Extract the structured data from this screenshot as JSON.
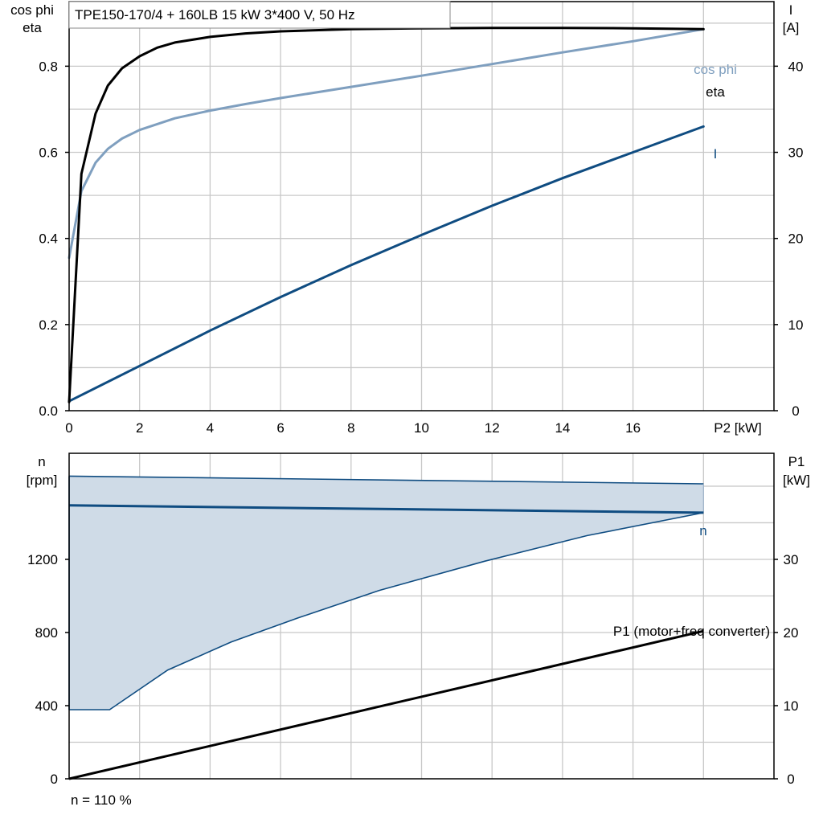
{
  "title": "TPE150-170/4 + 160LB   15 kW   3*400 V, 50 Hz",
  "footnote": "n = 110 %",
  "colors": {
    "eta": "#000000",
    "cosphi": "#7f9fbf",
    "current": "#0f4c81",
    "speed": "#0f4c81",
    "speed_band_fill": "#cfdbe7",
    "p1": "#000000",
    "grid": "#c8c8c8"
  },
  "chart_data": [
    {
      "type": "line",
      "axes": {
        "x": {
          "label": "P2 [kW]",
          "range": [
            0,
            20
          ],
          "ticks": [
            0,
            2,
            4,
            6,
            8,
            10,
            12,
            14,
            16
          ],
          "tick_labels": [
            "0",
            "2",
            "4",
            "6",
            "8",
            "10",
            "12",
            "14",
            "16"
          ]
        },
        "y_left": {
          "label_line1": "cos phi",
          "label_line2": "eta",
          "range": [
            0,
            0.95
          ],
          "ticks": [
            0.0,
            0.2,
            0.4,
            0.6,
            0.8
          ],
          "tick_labels": [
            "0.0",
            "0.2",
            "0.4",
            "0.6",
            "0.8"
          ]
        },
        "y_right": {
          "label_line1": "I",
          "label_line2": "[A]",
          "range": [
            0,
            47.5
          ],
          "ticks": [
            0,
            10,
            20,
            30,
            40
          ],
          "tick_labels": [
            "0",
            "10",
            "20",
            "30",
            "40"
          ]
        }
      },
      "grid": true,
      "series": [
        {
          "name": "eta",
          "axis": "left",
          "points": [
            [
              0,
              0.02
            ],
            [
              0.35,
              0.55
            ],
            [
              0.75,
              0.69
            ],
            [
              1.1,
              0.755
            ],
            [
              1.5,
              0.795
            ],
            [
              2,
              0.823
            ],
            [
              2.5,
              0.843
            ],
            [
              3,
              0.855
            ],
            [
              4,
              0.868
            ],
            [
              5,
              0.876
            ],
            [
              6,
              0.881
            ],
            [
              8,
              0.886
            ],
            [
              10,
              0.888
            ],
            [
              12,
              0.889
            ],
            [
              14,
              0.889
            ],
            [
              16,
              0.888
            ],
            [
              18,
              0.886
            ]
          ]
        },
        {
          "name": "cos phi",
          "axis": "left",
          "points": [
            [
              0,
              0.355
            ],
            [
              0.35,
              0.51
            ],
            [
              0.75,
              0.576
            ],
            [
              1.1,
              0.608
            ],
            [
              1.5,
              0.632
            ],
            [
              2,
              0.652
            ],
            [
              3,
              0.679
            ],
            [
              4,
              0.697
            ],
            [
              5,
              0.712
            ],
            [
              6,
              0.726
            ],
            [
              8,
              0.752
            ],
            [
              10,
              0.778
            ],
            [
              12,
              0.805
            ],
            [
              14,
              0.832
            ],
            [
              16,
              0.858
            ],
            [
              18,
              0.886
            ]
          ]
        },
        {
          "name": "I",
          "axis": "right",
          "points": [
            [
              0,
              1.1
            ],
            [
              2,
              5.2
            ],
            [
              4,
              9.3
            ],
            [
              6,
              13.2
            ],
            [
              8,
              16.9
            ],
            [
              10,
              20.4
            ],
            [
              12,
              23.8
            ],
            [
              14,
              27.0
            ],
            [
              16,
              30.0
            ],
            [
              18,
              33.0
            ]
          ]
        }
      ]
    },
    {
      "type": "area",
      "axes": {
        "x": {
          "range": [
            0,
            20
          ]
        },
        "y_left": {
          "label_line1": "n",
          "label_line2": "[rpm]",
          "range": [
            0,
            1780
          ],
          "ticks": [
            0,
            400,
            800,
            1200
          ],
          "tick_labels": [
            "0",
            "400",
            "800",
            "1200"
          ]
        },
        "y_right": {
          "label_line1": "P1",
          "label_line2": "[kW]",
          "range": [
            0,
            44.5
          ],
          "ticks": [
            0,
            10,
            20,
            30
          ],
          "tick_labels": [
            "0",
            "10",
            "20",
            "30"
          ]
        }
      },
      "grid": true,
      "series": [
        {
          "name": "n",
          "axis": "left",
          "role": "line",
          "points": [
            [
              0,
              1495
            ],
            [
              18,
              1455
            ]
          ]
        },
        {
          "name": "n max",
          "axis": "left",
          "role": "band-upper",
          "points": [
            [
              0,
              1655
            ],
            [
              18,
              1613
            ]
          ]
        },
        {
          "name": "n min",
          "axis": "left",
          "role": "band-lower",
          "points": [
            [
              0,
              378
            ],
            [
              1.15,
              378
            ],
            [
              2.8,
              595
            ],
            [
              4.6,
              748
            ],
            [
              6.5,
              880
            ],
            [
              8.8,
              1030
            ],
            [
              11.8,
              1190
            ],
            [
              14.7,
              1330
            ],
            [
              18,
              1455
            ]
          ]
        },
        {
          "name": "P1 (motor+freq converter)",
          "axis": "right",
          "role": "line",
          "points": [
            [
              0,
              0
            ],
            [
              18,
              20.2
            ]
          ]
        }
      ]
    }
  ]
}
